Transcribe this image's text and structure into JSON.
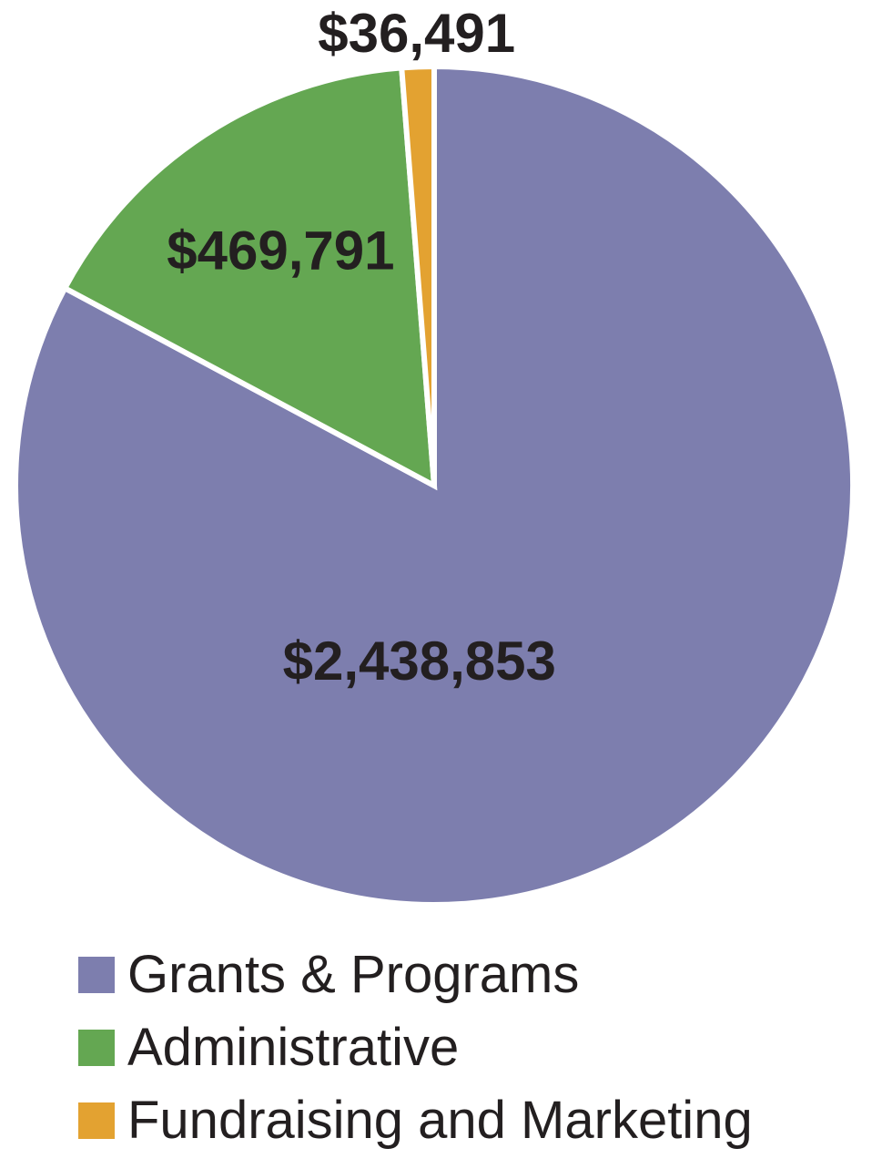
{
  "chart_data": {
    "type": "pie",
    "title": "",
    "slices": [
      {
        "name": "Grants & Programs",
        "value": 2438853,
        "label": "$2,438,853",
        "color": "#7d7eae"
      },
      {
        "name": "Administrative",
        "value": 469791,
        "label": "$469,791",
        "color": "#64a752"
      },
      {
        "name": "Fundraising and Marketing",
        "value": 36491,
        "label": "$36,491",
        "color": "#e3a231"
      }
    ],
    "start_angle_deg": 0,
    "direction": "clockwise",
    "legend_position": "bottom-left"
  }
}
